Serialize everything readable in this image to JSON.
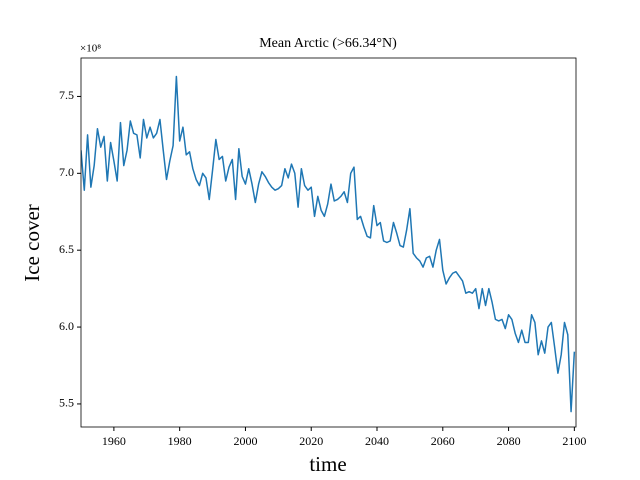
{
  "chart_data": {
    "type": "line",
    "title": "Mean Arctic (>66.34°N)",
    "x_label": "time",
    "y_label": "Ice cover",
    "y_offset_label": "×10⁸",
    "color": "#1f77b4",
    "x": [
      1950,
      1951,
      1952,
      1953,
      1954,
      1955,
      1956,
      1957,
      1958,
      1959,
      1960,
      1961,
      1962,
      1963,
      1964,
      1965,
      1966,
      1967,
      1968,
      1969,
      1970,
      1971,
      1972,
      1973,
      1974,
      1975,
      1976,
      1977,
      1978,
      1979,
      1980,
      1981,
      1982,
      1983,
      1984,
      1985,
      1986,
      1987,
      1988,
      1989,
      1990,
      1991,
      1992,
      1993,
      1994,
      1995,
      1996,
      1997,
      1998,
      1999,
      2000,
      2001,
      2002,
      2003,
      2004,
      2005,
      2006,
      2007,
      2008,
      2009,
      2010,
      2011,
      2012,
      2013,
      2014,
      2015,
      2016,
      2017,
      2018,
      2019,
      2020,
      2021,
      2022,
      2023,
      2024,
      2025,
      2026,
      2027,
      2028,
      2029,
      2030,
      2031,
      2032,
      2033,
      2034,
      2035,
      2036,
      2037,
      2038,
      2039,
      2040,
      2041,
      2042,
      2043,
      2044,
      2045,
      2046,
      2047,
      2048,
      2049,
      2050,
      2051,
      2052,
      2053,
      2054,
      2055,
      2056,
      2057,
      2058,
      2059,
      2060,
      2061,
      2062,
      2063,
      2064,
      2065,
      2066,
      2067,
      2068,
      2069,
      2070,
      2071,
      2072,
      2073,
      2074,
      2075,
      2076,
      2077,
      2078,
      2079,
      2080,
      2081,
      2082,
      2083,
      2084,
      2085,
      2086,
      2087,
      2088,
      2089,
      2090,
      2091,
      2092,
      2093,
      2094,
      2095,
      2096,
      2097,
      2098,
      2099,
      2100
    ],
    "values": [
      7.15,
      6.89,
      7.25,
      6.91,
      7.05,
      7.29,
      7.17,
      7.24,
      6.95,
      7.2,
      7.08,
      6.95,
      7.33,
      7.05,
      7.15,
      7.34,
      7.26,
      7.25,
      7.1,
      7.35,
      7.23,
      7.3,
      7.23,
      7.26,
      7.35,
      7.15,
      6.96,
      7.08,
      7.18,
      7.63,
      7.21,
      7.3,
      7.12,
      7.14,
      7.03,
      6.96,
      6.92,
      7.0,
      6.97,
      6.83,
      7.02,
      7.22,
      7.09,
      7.11,
      6.95,
      7.04,
      7.09,
      6.83,
      7.16,
      6.98,
      6.93,
      7.03,
      6.93,
      6.81,
      6.93,
      7.01,
      6.98,
      6.94,
      6.91,
      6.89,
      6.9,
      6.92,
      7.03,
      6.97,
      7.06,
      7.0,
      6.78,
      7.03,
      6.92,
      6.89,
      6.91,
      6.72,
      6.85,
      6.76,
      6.72,
      6.8,
      6.93,
      6.82,
      6.83,
      6.85,
      6.88,
      6.81,
      7.0,
      7.04,
      6.7,
      6.72,
      6.65,
      6.59,
      6.58,
      6.79,
      6.66,
      6.68,
      6.56,
      6.55,
      6.56,
      6.68,
      6.61,
      6.53,
      6.52,
      6.63,
      6.77,
      6.48,
      6.45,
      6.43,
      6.39,
      6.45,
      6.46,
      6.39,
      6.5,
      6.57,
      6.37,
      6.28,
      6.32,
      6.35,
      6.36,
      6.33,
      6.3,
      6.22,
      6.23,
      6.22,
      6.25,
      6.12,
      6.25,
      6.14,
      6.25,
      6.16,
      6.05,
      6.04,
      6.05,
      5.99,
      6.08,
      6.05,
      5.96,
      5.9,
      5.98,
      5.9,
      5.9,
      6.08,
      6.03,
      5.82,
      5.91,
      5.83,
      6.0,
      6.03,
      5.87,
      5.7,
      5.82,
      6.03,
      5.95,
      5.45,
      5.84
    ],
    "xlim": [
      1950,
      2100.5
    ],
    "ylim": [
      5.35,
      7.75
    ],
    "xticks": [
      1960,
      1980,
      2000,
      2020,
      2040,
      2060,
      2080,
      2100
    ],
    "yticks": [
      5.5,
      {
        "value": 6,
        "label": "6.0"
      },
      6.5,
      {
        "value": 7,
        "label": "7.0"
      },
      7.5
    ]
  }
}
